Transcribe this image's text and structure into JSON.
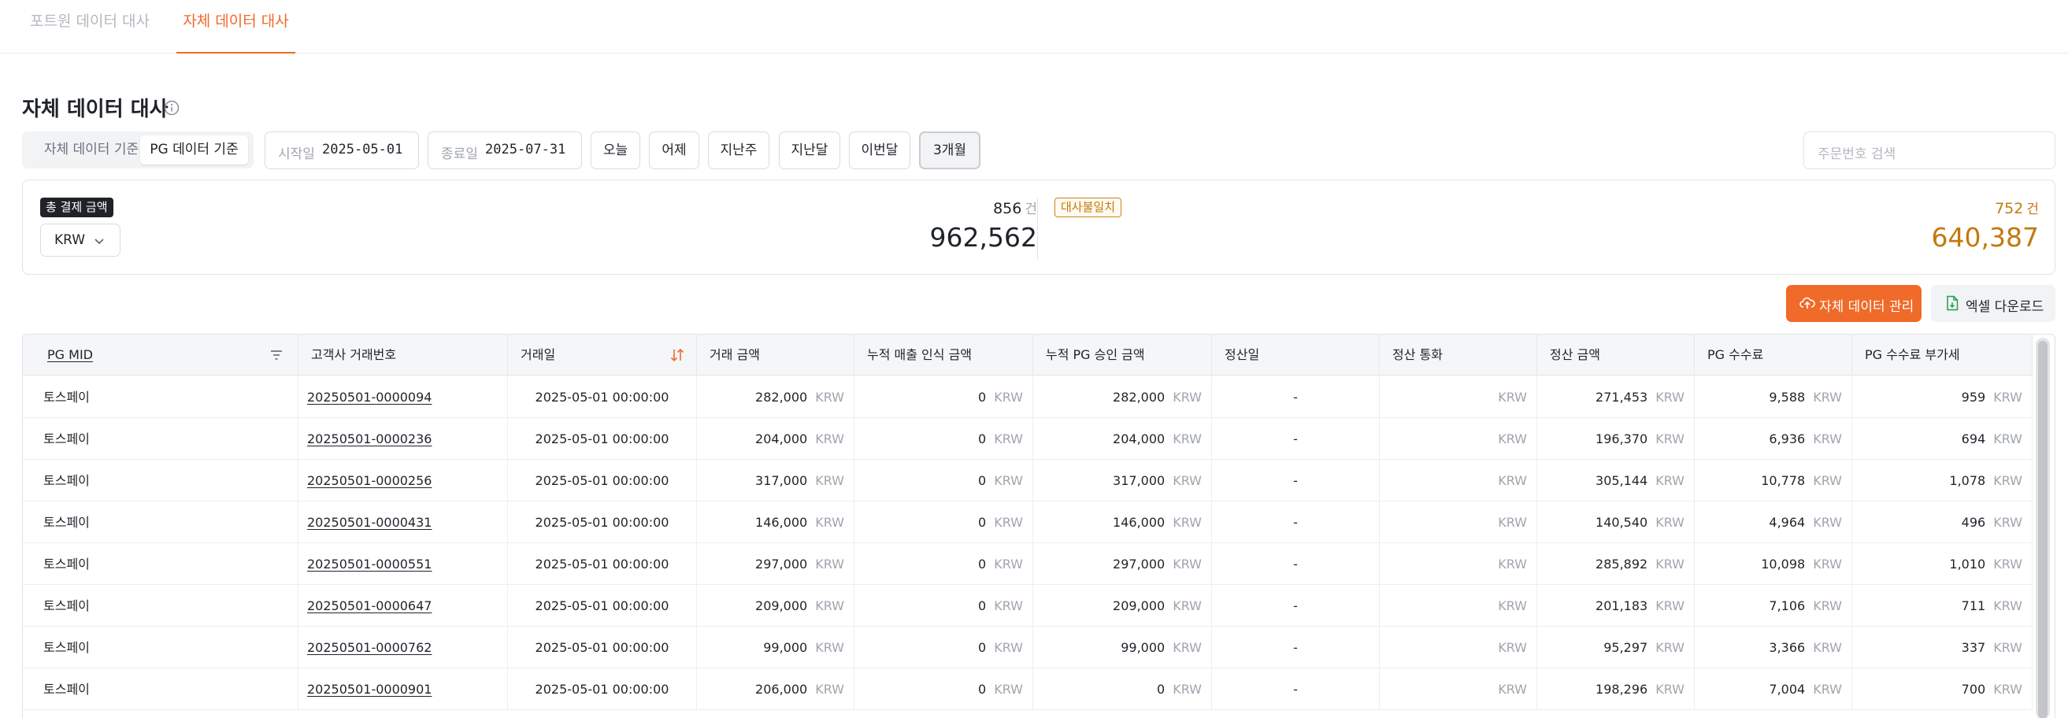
{
  "tabs": [
    {
      "label": "포트원 데이터 대사"
    },
    {
      "label": "자체 데이터 대사"
    }
  ],
  "page": {
    "title": "자체 데이터 대사"
  },
  "filters": {
    "basis": [
      "자체 데이터 기준",
      "PG 데이터 기준"
    ],
    "start_label": "시작일",
    "start_value": "2025-05-01",
    "end_label": "종료일",
    "end_value": "2025-07-31",
    "quick": [
      "오늘",
      "어제",
      "지난주",
      "지난달",
      "이번달",
      "3개월"
    ],
    "search_placeholder": "주문번호 검색"
  },
  "summary": {
    "total_badge": "총 결제 금액",
    "currency": "KRW",
    "total_count": "856",
    "count_unit": "건",
    "total_amount": "962,562",
    "mismatch_badge": "대사불일치",
    "mismatch_count": "752",
    "mismatch_amount": "640,387"
  },
  "actions": {
    "manage_label": "자체 데이터 관리",
    "excel_label": "엑셀 다운로드"
  },
  "table": {
    "columns": [
      "PG MID",
      "고객사 거래번호",
      "거래일",
      "거래 금액",
      "누적 매출 인식 금액",
      "누적 PG 승인 금액",
      "정산일",
      "정산 통화",
      "정산 금액",
      "PG 수수료",
      "PG 수수료 부가세"
    ],
    "currency": "KRW",
    "rows": [
      {
        "mid": "토스페이",
        "order": "20250501-0000094",
        "date": "2025-05-01 00:00:00",
        "amount": "282,000",
        "recognized": "0",
        "approved": "282,000",
        "settle_date": "-",
        "settle_amount": "271,453",
        "fee": "9,588",
        "fee_vat": "959"
      },
      {
        "mid": "토스페이",
        "order": "20250501-0000236",
        "date": "2025-05-01 00:00:00",
        "amount": "204,000",
        "recognized": "0",
        "approved": "204,000",
        "settle_date": "-",
        "settle_amount": "196,370",
        "fee": "6,936",
        "fee_vat": "694"
      },
      {
        "mid": "토스페이",
        "order": "20250501-0000256",
        "date": "2025-05-01 00:00:00",
        "amount": "317,000",
        "recognized": "0",
        "approved": "317,000",
        "settle_date": "-",
        "settle_amount": "305,144",
        "fee": "10,778",
        "fee_vat": "1,078"
      },
      {
        "mid": "토스페이",
        "order": "20250501-0000431",
        "date": "2025-05-01 00:00:00",
        "amount": "146,000",
        "recognized": "0",
        "approved": "146,000",
        "settle_date": "-",
        "settle_amount": "140,540",
        "fee": "4,964",
        "fee_vat": "496"
      },
      {
        "mid": "토스페이",
        "order": "20250501-0000551",
        "date": "2025-05-01 00:00:00",
        "amount": "297,000",
        "recognized": "0",
        "approved": "297,000",
        "settle_date": "-",
        "settle_amount": "285,892",
        "fee": "10,098",
        "fee_vat": "1,010"
      },
      {
        "mid": "토스페이",
        "order": "20250501-0000647",
        "date": "2025-05-01 00:00:00",
        "amount": "209,000",
        "recognized": "0",
        "approved": "209,000",
        "settle_date": "-",
        "settle_amount": "201,183",
        "fee": "7,106",
        "fee_vat": "711"
      },
      {
        "mid": "토스페이",
        "order": "20250501-0000762",
        "date": "2025-05-01 00:00:00",
        "amount": "99,000",
        "recognized": "0",
        "approved": "99,000",
        "settle_date": "-",
        "settle_amount": "95,297",
        "fee": "3,366",
        "fee_vat": "337"
      },
      {
        "mid": "토스페이",
        "order": "20250501-0000901",
        "date": "2025-05-01 00:00:00",
        "amount": "206,000",
        "recognized": "0",
        "approved": "0",
        "settle_date": "-",
        "settle_amount": "198,296",
        "fee": "7,004",
        "fee_vat": "700"
      }
    ]
  },
  "colors": {
    "accent": "#f06a29",
    "warning": "#c27a0e"
  }
}
